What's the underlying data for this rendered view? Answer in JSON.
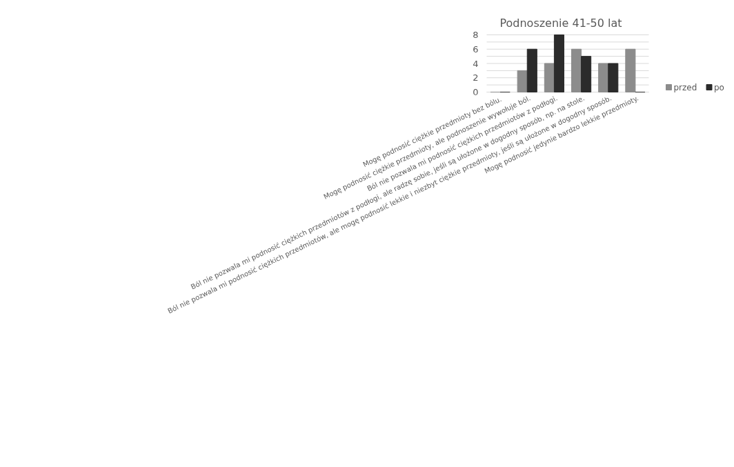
{
  "chart_data": {
    "type": "bar",
    "title": "Podnoszenie 41-50 lat",
    "categories": [
      "Mogę podnosić ciężkie przedmioty bez  bólu.",
      "Mogę podnosić ciężkie przedmioty, ale podnoszenie wywołuje ból.",
      "Ból nie pozwala mi podnosić ciężkich przedmiotów z podłogi.",
      "Ból nie pozwala mi podnosić ciężkich przedmiotów z podłogi, ale radzę sobie, jeśli są ułożone w dogodny sposób, np. na stole.",
      "Ból nie pozwala mi podnosić ciężkich przedmiotów, ale mogę podnosić lekkie i niezbyt ciężkie przedmioty, jeśli są ułożone w dogodny sposób.",
      "Mogę podnosić jedynie bardzo lekkie przedmioty."
    ],
    "series": [
      {
        "name": "przed",
        "color": "#8c8c8c",
        "values": [
          0,
          3,
          4,
          6,
          4,
          6
        ]
      },
      {
        "name": "po",
        "color": "#2b2b2b",
        "values": [
          0,
          6,
          8,
          5,
          4,
          0
        ]
      }
    ],
    "ylim": [
      0,
      8
    ],
    "yticks": [
      0,
      {
        "value": 1,
        "label": null
      },
      2,
      {
        "value": 3,
        "label": null
      },
      4,
      {
        "value": 5,
        "label": null
      },
      6,
      {
        "value": 7,
        "label": null
      },
      8
    ],
    "grid": "y",
    "legend": "right"
  }
}
